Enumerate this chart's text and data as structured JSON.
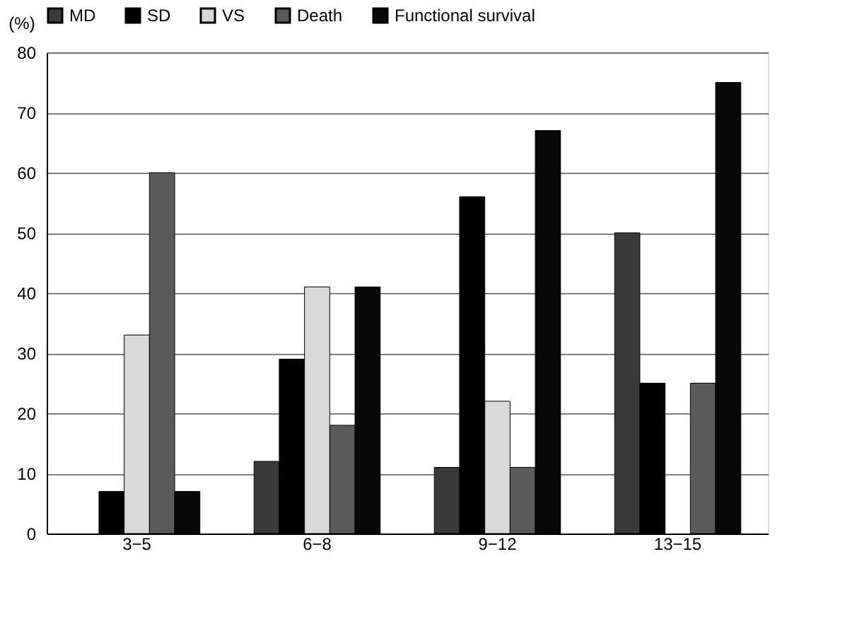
{
  "chart_data": {
    "type": "bar",
    "ylabel": "(%)",
    "categories": [
      "3−5",
      "6−8",
      "9−12",
      "13−15"
    ],
    "series": [
      {
        "name": "MD",
        "color": "#3a3a3a",
        "values": [
          0,
          12,
          11,
          50
        ]
      },
      {
        "name": "SD",
        "color": "#000000",
        "values": [
          7,
          29,
          56,
          25
        ]
      },
      {
        "name": "VS",
        "color": "#d9d9d9",
        "values": [
          33,
          41,
          22,
          0
        ]
      },
      {
        "name": "Death",
        "color": "#5a5a5a",
        "values": [
          60,
          18,
          11,
          25
        ]
      },
      {
        "name": "Functional survival",
        "color": "#080808",
        "values": [
          7,
          41,
          67,
          75
        ]
      }
    ],
    "ylim": [
      0,
      80
    ],
    "yticks": [
      0,
      10,
      20,
      30,
      40,
      50,
      60,
      70,
      80
    ],
    "grid": "y",
    "legend": "top"
  }
}
